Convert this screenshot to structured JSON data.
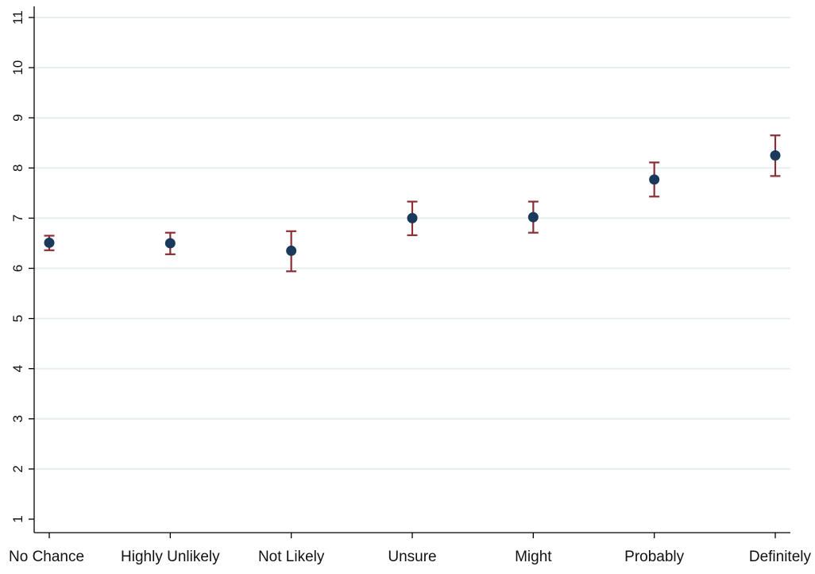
{
  "chart_data": {
    "type": "scatter",
    "title": "",
    "xlabel": "",
    "ylabel": "",
    "categories": [
      "No Chance",
      "Highly Unlikely",
      "Not Likely",
      "Unsure",
      "Might",
      "Probably",
      "Definitely"
    ],
    "series": [
      {
        "values": [
          6.51,
          6.5,
          6.35,
          7.0,
          7.02,
          7.77,
          8.25
        ],
        "ci_low": [
          6.36,
          6.28,
          5.94,
          6.66,
          6.71,
          7.43,
          7.84
        ],
        "ci_high": [
          6.65,
          6.71,
          6.74,
          7.33,
          7.33,
          8.11,
          8.65
        ]
      }
    ],
    "ylim": [
      1,
      11
    ],
    "yticks": [
      "1",
      "2",
      "3",
      "4",
      "5",
      "6",
      "7",
      "8",
      "9",
      "10",
      "11"
    ],
    "grid": true,
    "legend": "none",
    "colors": {
      "marker": "#1a3a5c",
      "error_bar": "#8b2e35",
      "grid": "#e6efee",
      "axis": "#000000"
    }
  }
}
